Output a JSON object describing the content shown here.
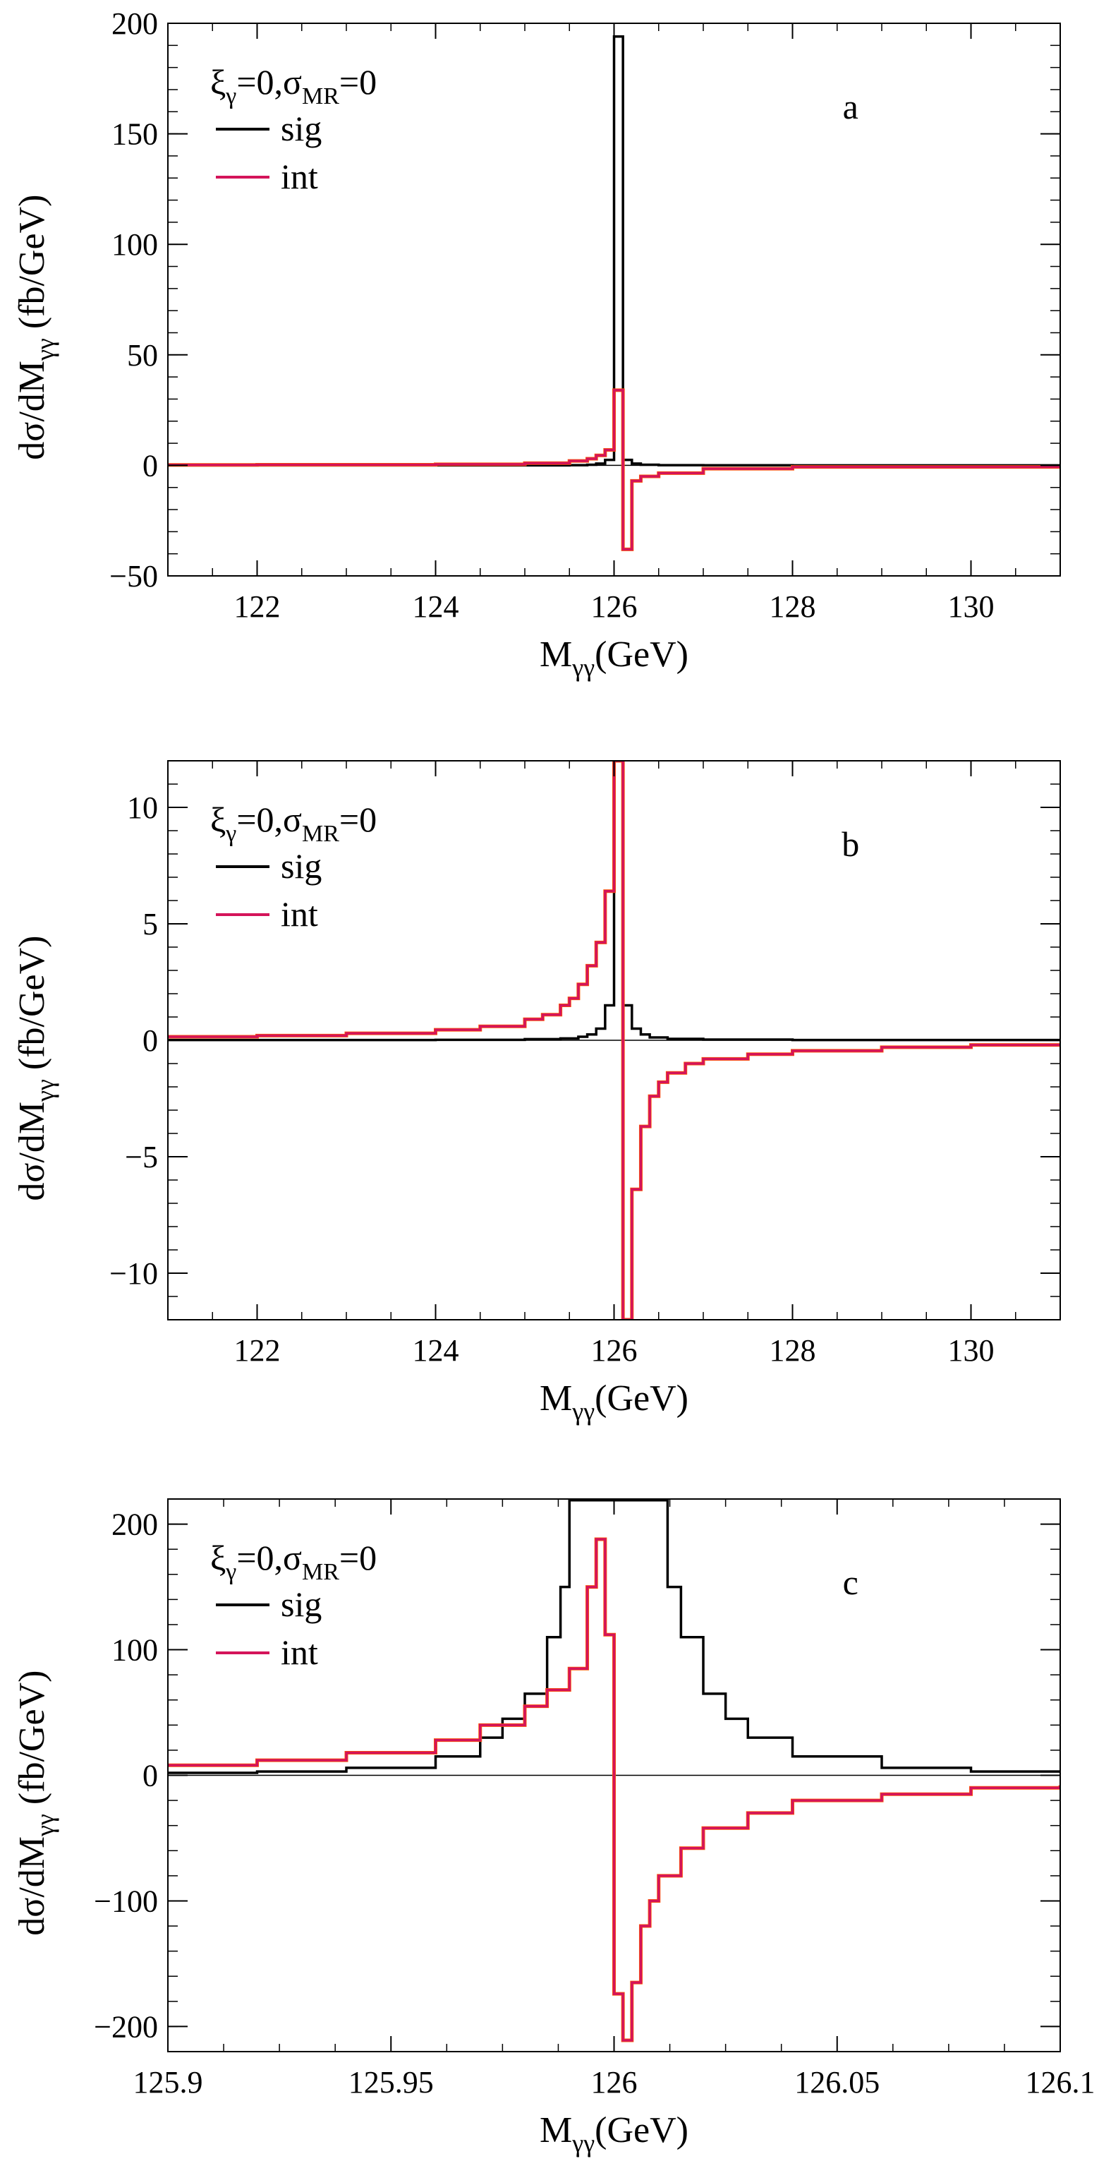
{
  "figure": {
    "ylabel": "dσ/dM",
    "ylabel_sub": "γγ",
    "ylabel_unit": " (fb/GeV)",
    "xlabel": "M",
    "xlabel_sub": "γγ",
    "xlabel_unit": "(GeV)",
    "legend": {
      "title_xi": "ξ",
      "title_xi_sub": "γ",
      "title_mid": "=0,σ",
      "title_sigma_sub": "MR",
      "title_end": "=0",
      "sig_label": "sig",
      "int_label": "int"
    },
    "colors": {
      "sig": "#000000",
      "int": "#d4145a",
      "int_edge": "#ff5a00",
      "zero_line": "#000000"
    }
  },
  "chart_data": [
    {
      "type": "line",
      "step": true,
      "panel_label": "a",
      "xlim": [
        121,
        131
      ],
      "ylim": [
        -50,
        200
      ],
      "xticks": [
        122,
        124,
        126,
        128,
        130
      ],
      "xtick_labels": [
        "122",
        "124",
        "126",
        "128",
        "130"
      ],
      "yticks": [
        -50,
        0,
        50,
        100,
        150,
        200
      ],
      "ytick_labels": [
        "−50",
        "0",
        "50",
        "100",
        "150",
        "200"
      ],
      "series": [
        {
          "name": "sig",
          "x": [
            121,
            125.5,
            125.7,
            125.8,
            125.9,
            126.0,
            126.1,
            126.2,
            126.3,
            126.5,
            127,
            128,
            131
          ],
          "y": [
            0.02,
            0.1,
            0.3,
            0.8,
            2.5,
            194,
            2.5,
            0.8,
            0.3,
            0.1,
            0.05,
            0.02,
            0.01
          ]
        },
        {
          "name": "int",
          "x": [
            121,
            122,
            124,
            125,
            125.5,
            125.7,
            125.8,
            125.9,
            126.0,
            126.1,
            126.2,
            126.3,
            126.5,
            127,
            128,
            131
          ],
          "y": [
            0.2,
            0.3,
            0.5,
            1.0,
            2.0,
            3.0,
            4.5,
            7.0,
            34,
            -38,
            -7,
            -5,
            -3.5,
            -1.5,
            -0.7,
            -0.2
          ]
        }
      ]
    },
    {
      "type": "line",
      "step": true,
      "panel_label": "b",
      "xlim": [
        121,
        131
      ],
      "ylim": [
        -12,
        12
      ],
      "xticks": [
        122,
        124,
        126,
        128,
        130
      ],
      "xtick_labels": [
        "122",
        "124",
        "126",
        "128",
        "130"
      ],
      "yticks": [
        -10,
        -5,
        0,
        5,
        10
      ],
      "ytick_labels": [
        "−10",
        "−5",
        "0",
        "5",
        "10"
      ],
      "series": [
        {
          "name": "sig",
          "x": [
            121,
            124,
            125,
            125.4,
            125.6,
            125.7,
            125.8,
            125.9,
            126.0,
            126.1,
            126.2,
            126.3,
            126.4,
            126.6,
            127,
            128,
            131
          ],
          "y": [
            0.01,
            0.02,
            0.05,
            0.08,
            0.15,
            0.25,
            0.5,
            1.5,
            12,
            1.5,
            0.5,
            0.25,
            0.12,
            0.06,
            0.03,
            0.01,
            0.005
          ]
        },
        {
          "name": "int",
          "x": [
            121,
            122,
            123,
            124,
            124.5,
            125,
            125.2,
            125.4,
            125.5,
            125.6,
            125.7,
            125.8,
            125.9,
            126.0,
            126.1,
            126.2,
            126.3,
            126.4,
            126.5,
            126.6,
            126.8,
            127,
            127.5,
            128,
            129,
            130,
            131
          ],
          "y": [
            0.15,
            0.2,
            0.3,
            0.45,
            0.6,
            0.9,
            1.1,
            1.5,
            1.8,
            2.4,
            3.2,
            4.2,
            6.4,
            12,
            -12,
            -6.4,
            -3.7,
            -2.4,
            -1.8,
            -1.4,
            -1.0,
            -0.8,
            -0.6,
            -0.45,
            -0.3,
            -0.2,
            -0.15
          ]
        }
      ]
    },
    {
      "type": "line",
      "step": true,
      "panel_label": "c",
      "xlim": [
        125.9,
        126.1
      ],
      "ylim": [
        -220,
        220
      ],
      "xticks": [
        125.9,
        125.95,
        126,
        126.05,
        126.1
      ],
      "xtick_labels": [
        "125.9",
        "125.95",
        "126",
        "126.05",
        "126.1"
      ],
      "yticks": [
        -200,
        -100,
        0,
        100,
        200
      ],
      "ytick_labels": [
        "−200",
        "−100",
        "0",
        "100",
        "200"
      ],
      "series": [
        {
          "name": "sig",
          "x": [
            125.9,
            125.92,
            125.94,
            125.96,
            125.97,
            125.975,
            125.98,
            125.985,
            125.988,
            125.99,
            126.0,
            126.01,
            126.012,
            126.015,
            126.02,
            126.025,
            126.03,
            126.04,
            126.06,
            126.08,
            126.1
          ],
          "y": [
            2,
            3,
            6,
            15,
            30,
            45,
            65,
            110,
            150,
            219,
            219,
            219,
            150,
            110,
            65,
            45,
            30,
            15,
            6,
            3,
            2
          ]
        },
        {
          "name": "int",
          "x": [
            125.9,
            125.92,
            125.94,
            125.96,
            125.97,
            125.98,
            125.985,
            125.99,
            125.994,
            125.996,
            125.998,
            126.0,
            126.002,
            126.004,
            126.006,
            126.008,
            126.01,
            126.015,
            126.02,
            126.03,
            126.04,
            126.06,
            126.08,
            126.1
          ],
          "y": [
            8,
            12,
            18,
            28,
            40,
            55,
            68,
            85,
            150,
            188,
            112,
            -174,
            -211,
            -165,
            -120,
            -100,
            -80,
            -58,
            -42,
            -30,
            -20,
            -15,
            -10,
            -8
          ]
        }
      ]
    }
  ]
}
